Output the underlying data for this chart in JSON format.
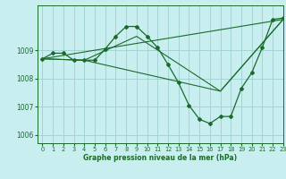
{
  "xlabel": "Graphe pression niveau de la mer (hPa)",
  "background_color": "#c8eef0",
  "grid_color": "#9ecfcf",
  "line_color": "#1a6b2a",
  "ylim": [
    1005.7,
    1010.6
  ],
  "xlim": [
    -0.5,
    23
  ],
  "yticks": [
    1006,
    1007,
    1008,
    1009
  ],
  "xticks": [
    0,
    1,
    2,
    3,
    4,
    5,
    6,
    7,
    8,
    9,
    10,
    11,
    12,
    13,
    14,
    15,
    16,
    17,
    18,
    19,
    20,
    21,
    22,
    23
  ],
  "series": [
    {
      "x": [
        0,
        1,
        2,
        3,
        4,
        5,
        6,
        7,
        8,
        9,
        10,
        11,
        12,
        13,
        14,
        15,
        16,
        17,
        18,
        19,
        20,
        21,
        22,
        23
      ],
      "y": [
        1008.7,
        1008.9,
        1008.9,
        1008.65,
        1008.65,
        1008.65,
        1009.05,
        1009.5,
        1009.85,
        1009.85,
        1009.5,
        1009.1,
        1008.5,
        1007.85,
        1007.05,
        1006.55,
        1006.4,
        1006.65,
        1006.65,
        1007.65,
        1008.2,
        1009.1,
        1010.1,
        1010.15
      ],
      "marker": true
    },
    {
      "x": [
        0,
        23
      ],
      "y": [
        1008.7,
        1010.1
      ],
      "marker": false
    },
    {
      "x": [
        0,
        4,
        17,
        23
      ],
      "y": [
        1008.7,
        1008.65,
        1007.55,
        1010.1
      ],
      "marker": false
    },
    {
      "x": [
        0,
        4,
        9,
        17,
        23
      ],
      "y": [
        1008.7,
        1008.65,
        1009.5,
        1007.55,
        1010.1
      ],
      "marker": false
    }
  ]
}
